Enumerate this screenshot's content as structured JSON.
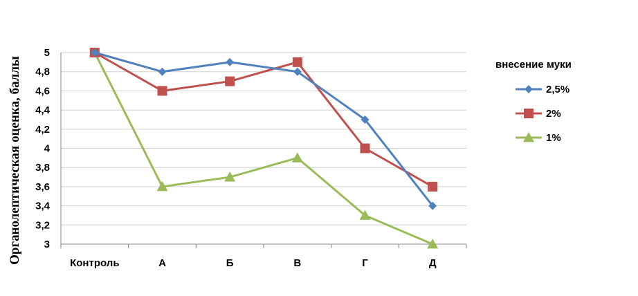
{
  "chart_data": {
    "type": "line",
    "title": "",
    "xlabel": "",
    "ylabel": "Органолептическая оценка, баллы",
    "categories": [
      "Контроль",
      "А",
      "Б",
      "В",
      "Г",
      "Д"
    ],
    "ylim": [
      3,
      5
    ],
    "yticks": [
      "3",
      "3,2",
      "3,4",
      "3,6",
      "3,8",
      "4",
      "4,2",
      "4,4",
      "4,6",
      "4,8",
      "5"
    ],
    "grid": true,
    "legend_title": "внесение муки",
    "legend_position": "right",
    "series": [
      {
        "name": "2,5%",
        "color": "#4f81bd",
        "marker": "diamond",
        "values": [
          5,
          4.8,
          4.9,
          4.8,
          4.3,
          3.4
        ]
      },
      {
        "name": "2%",
        "color": "#c0504d",
        "marker": "square",
        "values": [
          5,
          4.6,
          4.7,
          4.9,
          4.0,
          3.6
        ]
      },
      {
        "name": "1%",
        "color": "#9bbb59",
        "marker": "triangle",
        "values": [
          5,
          3.6,
          3.7,
          3.9,
          3.3,
          3.0
        ]
      }
    ]
  }
}
